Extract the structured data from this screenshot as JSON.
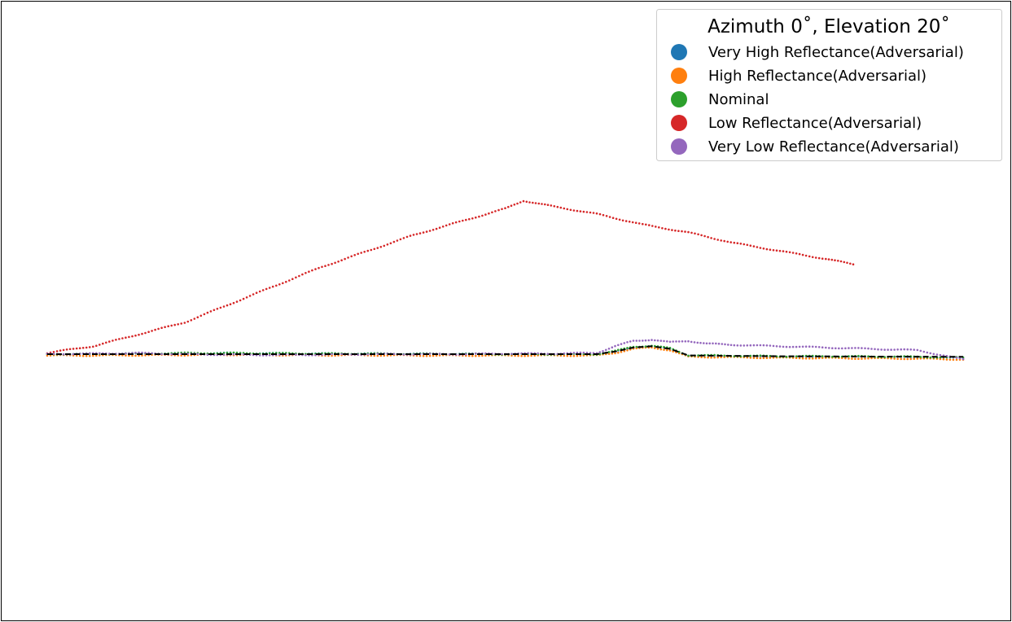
{
  "chart_data": {
    "type": "scatter",
    "title": "",
    "axes_visible": false,
    "frame": true,
    "x_range": [
      0,
      100
    ],
    "y_range": [
      -10,
      10
    ],
    "legend": {
      "title": "Azimuth 0$^\\circ$, Elevation 20$^\\circ$",
      "title_display": "Azimuth 0˚, Elevation 20˚",
      "placement": "top-right"
    },
    "series": [
      {
        "name": "Very High Reflectance(Adversarial)",
        "color": "#1f77b4",
        "points": [
          [
            0,
            0.0
          ],
          [
            5,
            0.0
          ],
          [
            10,
            0.02
          ],
          [
            15,
            0.03
          ],
          [
            20,
            0.04
          ],
          [
            25,
            0.03
          ],
          [
            30,
            0.02
          ],
          [
            35,
            0.02
          ],
          [
            40,
            0.01
          ],
          [
            45,
            0.01
          ],
          [
            50,
            0.0
          ],
          [
            55,
            0.0
          ],
          [
            60,
            0.0
          ],
          [
            62,
            0.1
          ],
          [
            64,
            0.25
          ],
          [
            66,
            0.3
          ],
          [
            68,
            0.2
          ],
          [
            70,
            -0.05
          ],
          [
            75,
            -0.08
          ],
          [
            80,
            -0.1
          ],
          [
            85,
            -0.1
          ],
          [
            90,
            -0.1
          ],
          [
            95,
            -0.12
          ],
          [
            100,
            -0.15
          ]
        ]
      },
      {
        "name": "High Reflectance(Adversarial)",
        "color": "#ff7f0e",
        "points": [
          [
            0,
            -0.05
          ],
          [
            5,
            -0.05
          ],
          [
            10,
            -0.04
          ],
          [
            15,
            -0.03
          ],
          [
            20,
            -0.02
          ],
          [
            25,
            -0.03
          ],
          [
            30,
            -0.04
          ],
          [
            35,
            -0.04
          ],
          [
            40,
            -0.05
          ],
          [
            45,
            -0.05
          ],
          [
            50,
            -0.05
          ],
          [
            55,
            -0.05
          ],
          [
            60,
            -0.05
          ],
          [
            62,
            0.05
          ],
          [
            64,
            0.2
          ],
          [
            66,
            0.25
          ],
          [
            68,
            0.15
          ],
          [
            70,
            -0.1
          ],
          [
            75,
            -0.12
          ],
          [
            80,
            -0.14
          ],
          [
            85,
            -0.15
          ],
          [
            90,
            -0.16
          ],
          [
            95,
            -0.17
          ],
          [
            100,
            -0.2
          ]
        ]
      },
      {
        "name": "Nominal",
        "color": "#2ca02c",
        "points": [
          [
            0,
            0.0
          ],
          [
            5,
            0.01
          ],
          [
            10,
            0.03
          ],
          [
            15,
            0.04
          ],
          [
            20,
            0.04
          ],
          [
            25,
            0.03
          ],
          [
            30,
            0.02
          ],
          [
            35,
            0.02
          ],
          [
            40,
            0.01
          ],
          [
            45,
            0.01
          ],
          [
            50,
            0.0
          ],
          [
            55,
            0.0
          ],
          [
            60,
            0.0
          ],
          [
            62,
            0.12
          ],
          [
            64,
            0.28
          ],
          [
            66,
            0.32
          ],
          [
            68,
            0.22
          ],
          [
            70,
            -0.04
          ],
          [
            75,
            -0.06
          ],
          [
            80,
            -0.08
          ],
          [
            85,
            -0.08
          ],
          [
            90,
            -0.09
          ],
          [
            95,
            -0.1
          ],
          [
            100,
            -0.13
          ]
        ]
      },
      {
        "name": "Low Reflectance(Adversarial)",
        "color": "#d62728",
        "points": [
          [
            0,
            0.05
          ],
          [
            5,
            0.3
          ],
          [
            10,
            0.75
          ],
          [
            15,
            1.2
          ],
          [
            20,
            1.9
          ],
          [
            25,
            2.6
          ],
          [
            30,
            3.3
          ],
          [
            35,
            3.9
          ],
          [
            40,
            4.5
          ],
          [
            45,
            5.0
          ],
          [
            50,
            5.5
          ],
          [
            52,
            5.8
          ],
          [
            55,
            5.6
          ],
          [
            60,
            5.3
          ],
          [
            65,
            4.9
          ],
          [
            70,
            4.6
          ],
          [
            75,
            4.2
          ],
          [
            80,
            3.9
          ],
          [
            85,
            3.6
          ],
          [
            88,
            3.4
          ]
        ]
      },
      {
        "name": "Very Low Reflectance(Adversarial)",
        "color": "#9467bd",
        "points": [
          [
            0,
            0.0
          ],
          [
            5,
            0.02
          ],
          [
            10,
            0.04
          ],
          [
            15,
            0.0
          ],
          [
            20,
            -0.02
          ],
          [
            25,
            -0.03
          ],
          [
            30,
            -0.02
          ],
          [
            35,
            0.0
          ],
          [
            40,
            0.0
          ],
          [
            45,
            0.0
          ],
          [
            50,
            0.02
          ],
          [
            55,
            0.02
          ],
          [
            60,
            0.05
          ],
          [
            62,
            0.3
          ],
          [
            64,
            0.5
          ],
          [
            66,
            0.55
          ],
          [
            68,
            0.45
          ],
          [
            70,
            0.5
          ],
          [
            72,
            0.4
          ],
          [
            75,
            0.35
          ],
          [
            80,
            0.3
          ],
          [
            85,
            0.25
          ],
          [
            90,
            0.2
          ],
          [
            95,
            0.15
          ],
          [
            100,
            -0.2
          ]
        ]
      }
    ],
    "reference_line": {
      "style": "dashed",
      "color": "#000000",
      "points": [
        [
          0,
          0.0
        ],
        [
          60,
          0.0
        ],
        [
          62,
          0.1
        ],
        [
          64,
          0.25
        ],
        [
          66,
          0.3
        ],
        [
          68,
          0.2
        ],
        [
          70,
          -0.05
        ],
        [
          80,
          -0.08
        ],
        [
          100,
          -0.1
        ]
      ]
    }
  }
}
